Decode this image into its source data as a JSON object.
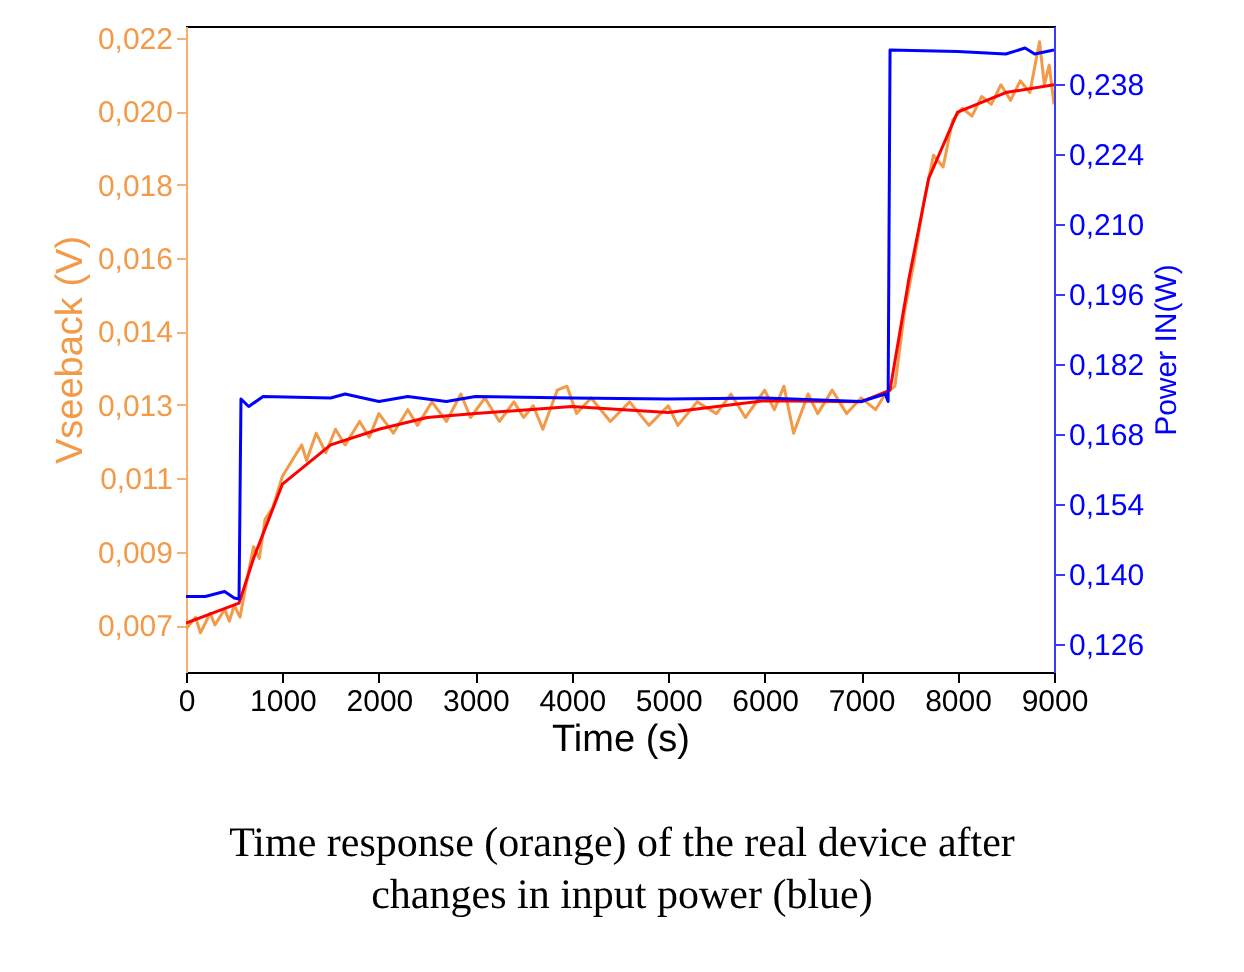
{
  "chart_data": {
    "type": "line",
    "xlabel": "Time (s)",
    "ylabel": "Vseeback (V)",
    "y2label": "Power IN(W)",
    "annotations": [
      "Time response (orange) of the real device after changes in input power (blue)"
    ],
    "xlim": [
      0,
      9000
    ],
    "xticks": [
      0,
      1000,
      2000,
      3000,
      4000,
      5000,
      6000,
      7000,
      8000,
      9000
    ],
    "ylim": [
      0.0058,
      0.0223
    ],
    "yticks": [
      {
        "value": 0.007,
        "label": "0,007"
      },
      {
        "value": 0.008875,
        "label": "0,009"
      },
      {
        "value": 0.01075,
        "label": "0,011"
      },
      {
        "value": 0.012625,
        "label": "0,013"
      },
      {
        "value": 0.0145,
        "label": "0,014"
      },
      {
        "value": 0.016375,
        "label": "0,016"
      },
      {
        "value": 0.01825,
        "label": "0,018"
      },
      {
        "value": 0.020125,
        "label": "0,020"
      },
      {
        "value": 0.022,
        "label": "0,022"
      }
    ],
    "y2lim": [
      0.1204,
      0.2496
    ],
    "y2ticks": [
      {
        "value": 0.126,
        "label": "0,126"
      },
      {
        "value": 0.14,
        "label": "0,140"
      },
      {
        "value": 0.154,
        "label": "0,154"
      },
      {
        "value": 0.168,
        "label": "0,168"
      },
      {
        "value": 0.182,
        "label": "0,182"
      },
      {
        "value": 0.196,
        "label": "0,196"
      },
      {
        "value": 0.21,
        "label": "0,210"
      },
      {
        "value": 0.224,
        "label": "0,224"
      },
      {
        "value": 0.238,
        "label": "0,238"
      }
    ],
    "grid": false,
    "series": [
      {
        "color": "#f29a48",
        "x": [
          0,
          100,
          150,
          250,
          300,
          400,
          450,
          500,
          560,
          620,
          700,
          760,
          820,
          900,
          1000,
          1100,
          1200,
          1250,
          1350,
          1450,
          1550,
          1650,
          1800,
          1900,
          2000,
          2150,
          2300,
          2400,
          2550,
          2700,
          2850,
          2950,
          3100,
          3250,
          3400,
          3500,
          3600,
          3700,
          3850,
          3950,
          4050,
          4200,
          4400,
          4600,
          4800,
          5000,
          5100,
          5300,
          5500,
          5650,
          5800,
          6000,
          6100,
          6200,
          6300,
          6450,
          6550,
          6700,
          6850,
          7000,
          7150,
          7250,
          7350,
          7450,
          7550,
          7650,
          7750,
          7850,
          7950,
          8050,
          8150,
          8250,
          8350,
          8450,
          8550,
          8650,
          8750,
          8850,
          8900,
          8950,
          9000
        ],
        "values": [
          0.0069,
          0.0072,
          0.0068,
          0.0073,
          0.007,
          0.0074,
          0.0071,
          0.0075,
          0.0072,
          0.008,
          0.009,
          0.0087,
          0.0097,
          0.01,
          0.0108,
          0.0112,
          0.0116,
          0.0112,
          0.0119,
          0.0114,
          0.012,
          0.0116,
          0.0122,
          0.0118,
          0.0124,
          0.0119,
          0.0125,
          0.0121,
          0.0127,
          0.0122,
          0.0129,
          0.0123,
          0.0128,
          0.0122,
          0.0127,
          0.0123,
          0.0126,
          0.012,
          0.013,
          0.0131,
          0.0124,
          0.0128,
          0.0122,
          0.0127,
          0.0121,
          0.0126,
          0.0121,
          0.0127,
          0.0124,
          0.0129,
          0.0123,
          0.013,
          0.0125,
          0.0131,
          0.0119,
          0.0129,
          0.0124,
          0.013,
          0.0124,
          0.0128,
          0.0125,
          0.0129,
          0.0131,
          0.015,
          0.0163,
          0.0178,
          0.019,
          0.0187,
          0.0199,
          0.0202,
          0.02,
          0.0205,
          0.0203,
          0.0208,
          0.0204,
          0.0209,
          0.0206,
          0.0219,
          0.0208,
          0.0213,
          0.0203
        ]
      },
      {
        "color": "#ff0000",
        "x": [
          0,
          550,
          700,
          1000,
          1500,
          2000,
          2500,
          3000,
          4000,
          5000,
          6000,
          7000,
          7300,
          7500,
          7700,
          8000,
          8500,
          9000
        ],
        "values": [
          0.00705,
          0.00756,
          0.0087,
          0.0106,
          0.0116,
          0.012,
          0.0123,
          0.0124,
          0.01258,
          0.01243,
          0.01273,
          0.0127,
          0.013,
          0.0159,
          0.0184,
          0.0201,
          0.0206,
          0.0208
        ]
      },
      {
        "color": "#0000ff",
        "axis": "y2",
        "x": [
          0,
          200,
          400,
          500,
          550,
          570,
          650,
          800,
          1500,
          1650,
          2000,
          2300,
          2700,
          3000,
          4000,
          5000,
          6000,
          7000,
          7250,
          7280,
          7300,
          8000,
          8500,
          8700,
          8800,
          9000
        ],
        "values": [
          0.1355,
          0.1355,
          0.1365,
          0.1352,
          0.135,
          0.175,
          0.1735,
          0.1755,
          0.1752,
          0.176,
          0.1745,
          0.1755,
          0.1745,
          0.1755,
          0.1752,
          0.175,
          0.1752,
          0.1745,
          0.176,
          0.1745,
          0.2448,
          0.2445,
          0.244,
          0.2452,
          0.244,
          0.2448
        ]
      }
    ]
  }
}
